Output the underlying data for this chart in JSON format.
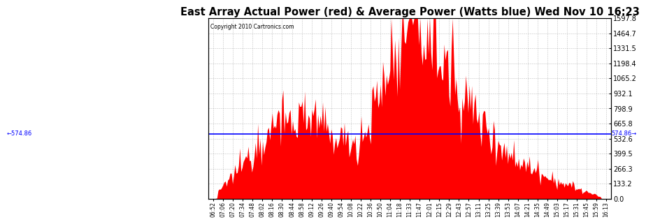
{
  "title": "East Array Actual Power (red) & Average Power (Watts blue) Wed Nov 10 16:23",
  "copyright": "Copyright 2010 Cartronics.com",
  "avg_power": 574.86,
  "ylim": [
    0,
    1597.8
  ],
  "yticks": [
    0.0,
    133.2,
    266.3,
    399.5,
    532.6,
    665.8,
    798.9,
    932.1,
    1065.2,
    1198.4,
    1331.5,
    1464.7,
    1597.8
  ],
  "bar_color": "#FF0000",
  "avg_line_color": "#0000FF",
  "background_color": "#FFFFFF",
  "title_fontsize": 10.5,
  "xlabel_fontsize": 5.5,
  "tick_label_fontsize": 7,
  "x_labels": [
    "06:52",
    "07:06",
    "07:20",
    "07:34",
    "07:48",
    "08:02",
    "08:16",
    "08:30",
    "08:44",
    "08:58",
    "09:12",
    "09:26",
    "09:40",
    "09:54",
    "10:08",
    "10:22",
    "10:36",
    "10:50",
    "11:04",
    "11:18",
    "11:33",
    "11:47",
    "12:01",
    "12:15",
    "12:29",
    "12:43",
    "12:57",
    "13:11",
    "13:25",
    "13:39",
    "13:53",
    "14:07",
    "14:21",
    "14:35",
    "14:49",
    "15:03",
    "15:17",
    "15:31",
    "15:45",
    "15:59",
    "16:13"
  ],
  "seed": 12345
}
